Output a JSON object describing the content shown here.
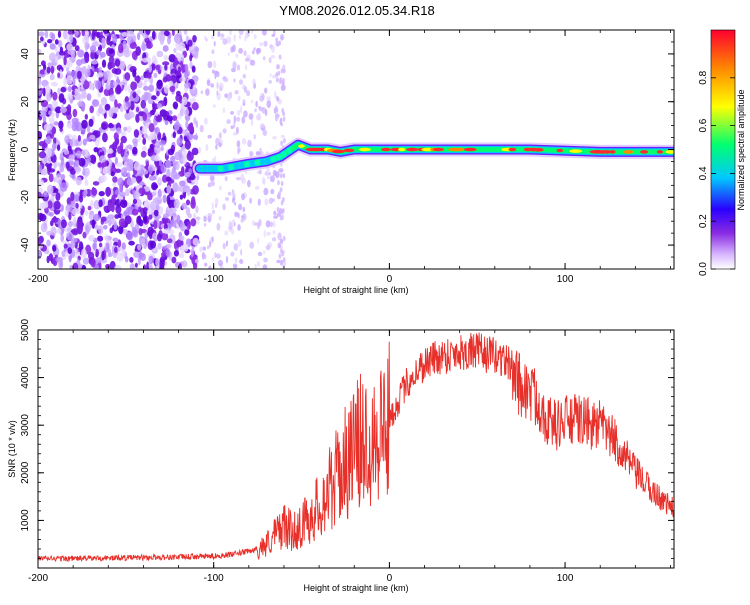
{
  "title": "YM08.2026.012.05.34.R18",
  "chart_data": [
    {
      "type": "heatmap",
      "title": "YM08.2026.012.05.34.R18",
      "xlabel": "Height of straight line (km)",
      "ylabel": "Frequency (Hz)",
      "xlim": [
        -200,
        162
      ],
      "ylim": [
        -50,
        50
      ],
      "xticks": [
        -200,
        -100,
        0,
        100
      ],
      "yticks": [
        -40,
        -20,
        0,
        20,
        40
      ],
      "xtick_labels": [
        "-200",
        "-100",
        "0",
        "100"
      ],
      "ytick_labels": [
        "-40",
        "-20",
        "0",
        "20",
        "40"
      ],
      "colorbar": {
        "label": "Normalized spectral amplitude",
        "range": [
          0,
          1
        ],
        "ticks": [
          0,
          0.2,
          0.4,
          0.6,
          0.8
        ],
        "tick_labels": [
          "0.0",
          "0.2",
          "0.4",
          "0.6",
          "0.8"
        ],
        "colors": [
          "#ffffff",
          "#d8b8ff",
          "#8a2be2",
          "#2a00ff",
          "#00c8ff",
          "#00ff70",
          "#ffff00",
          "#ff8800",
          "#ff0030"
        ]
      },
      "noise_region_x": [
        -200,
        -60
      ],
      "noise_sparse_x": [
        -110,
        -60
      ],
      "trace": [
        {
          "x": -108,
          "y": -8
        },
        {
          "x": -95,
          "y": -8
        },
        {
          "x": -80,
          "y": -6
        },
        {
          "x": -70,
          "y": -5
        },
        {
          "x": -62,
          "y": -3
        },
        {
          "x": -56,
          "y": 0
        },
        {
          "x": -52,
          "y": 2
        },
        {
          "x": -45,
          "y": 0
        },
        {
          "x": -35,
          "y": 0
        },
        {
          "x": -28,
          "y": -1
        },
        {
          "x": -20,
          "y": 0
        },
        {
          "x": 0,
          "y": 0
        },
        {
          "x": 40,
          "y": 0
        },
        {
          "x": 80,
          "y": 0
        },
        {
          "x": 120,
          "y": -1
        },
        {
          "x": 150,
          "y": -1
        },
        {
          "x": 162,
          "y": -1
        }
      ]
    },
    {
      "type": "line",
      "xlabel": "Height of straight line (km)",
      "ylabel": "SNR (10 * v/v)",
      "xlim": [
        -200,
        162
      ],
      "ylim": [
        0,
        5000
      ],
      "xticks": [
        -200,
        -100,
        0,
        100
      ],
      "yticks": [
        1000,
        2000,
        3000,
        4000,
        5000
      ],
      "xtick_labels": [
        "-200",
        "-100",
        "0",
        "100"
      ],
      "ytick_labels": [
        "1000",
        "2000",
        "3000",
        "4000",
        "5000"
      ],
      "color": "#e8302a",
      "series": [
        {
          "name": "SNR",
          "x": [
            -200,
            -180,
            -160,
            -140,
            -120,
            -100,
            -90,
            -80,
            -75,
            -70,
            -65,
            -60,
            -55,
            -50,
            -45,
            -40,
            -35,
            -30,
            -25,
            -20,
            -15,
            -10,
            -5,
            0,
            5,
            10,
            15,
            20,
            25,
            30,
            35,
            40,
            45,
            50,
            55,
            60,
            65,
            70,
            75,
            80,
            85,
            90,
            95,
            100,
            105,
            110,
            115,
            120,
            125,
            130,
            135,
            140,
            145,
            150,
            155,
            160,
            162
          ],
          "y": [
            200,
            200,
            210,
            220,
            230,
            250,
            280,
            350,
            400,
            500,
            700,
            900,
            750,
            900,
            1100,
            1300,
            1600,
            1900,
            2200,
            2500,
            2700,
            2800,
            2950,
            3100,
            3500,
            3900,
            4100,
            4300,
            4400,
            4450,
            4500,
            4550,
            4550,
            4550,
            4500,
            4450,
            4400,
            4200,
            3800,
            3700,
            3500,
            3100,
            3000,
            3100,
            3100,
            3100,
            3000,
            3000,
            2800,
            2600,
            2300,
            2000,
            1800,
            1600,
            1450,
            1300,
            1250
          ]
        }
      ]
    }
  ]
}
